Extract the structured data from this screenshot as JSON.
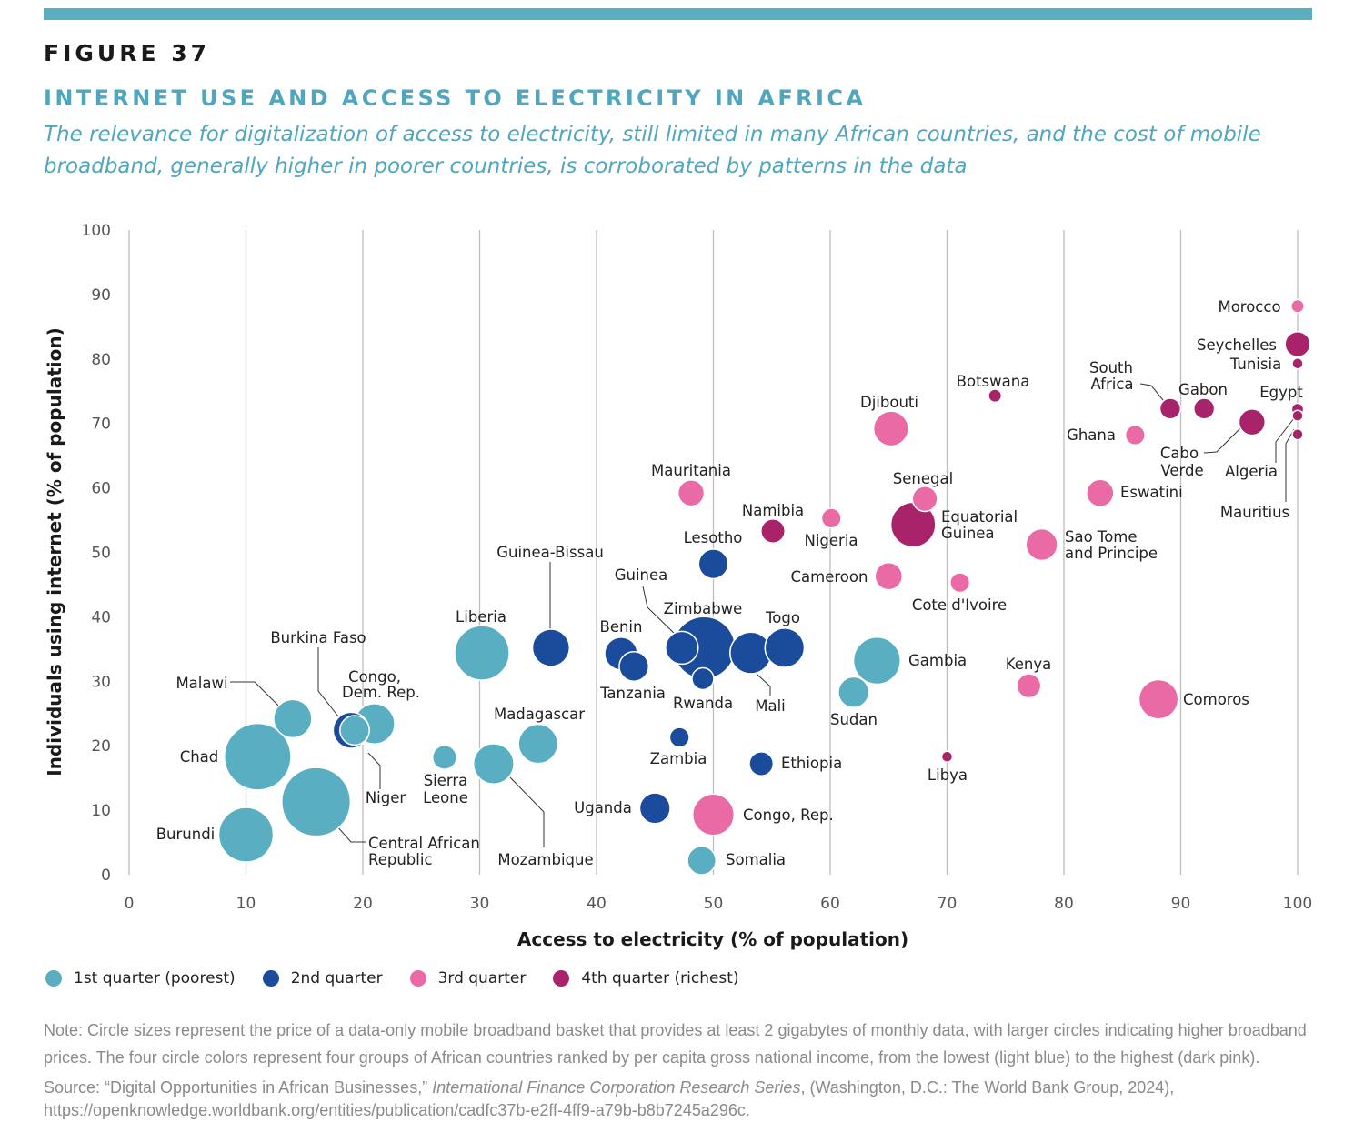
{
  "figure_label": "FIGURE 37",
  "title": "INTERNET USE AND ACCESS TO ELECTRICITY IN AFRICA",
  "subtitle": "The relevance for digitalization of access to electricity, still limited in many African countries, and the cost of mobile broadband, generally higher in poorer countries, is corroborated by patterns in the data",
  "legend": [
    {
      "label": "1st quarter (poorest)",
      "color": "#5aaec2"
    },
    {
      "label": "2nd quarter",
      "color": "#1b4b9b"
    },
    {
      "label": "3rd quarter",
      "color": "#ea6aa6"
    },
    {
      "label": "4th quarter (richest)",
      "color": "#a8236a"
    }
  ],
  "note": "Note: Circle sizes represent the price of a data-only mobile broadband basket that provides at least 2 gigabytes of monthly data, with larger circles indicating higher broadband prices. The four circle colors represent four groups of African countries ranked by per capita gross national income, from the lowest (light blue) to the highest (dark pink).",
  "source_prefix": "Source: “Digital Opportunities in African Businesses,”",
  "source_italic": "International Finance Corporation Research Series",
  "source_suffix": ", (Washington, D.C.: The World Bank Group, 2024),",
  "source_url": "https://openknowledge.worldbank.org/entities/publication/cadfc37b-e2ff-4ff9-a79b-b8b7245a296c.",
  "chart_data": {
    "type": "scatter",
    "xlabel": "Access to electricity (% of population)",
    "ylabel": "Individuals using internet (% of population)",
    "xlim": [
      0,
      100
    ],
    "ylim": [
      0,
      100
    ],
    "xticks": [
      0,
      10,
      20,
      30,
      40,
      50,
      60,
      70,
      80,
      90,
      100
    ],
    "yticks": [
      0,
      10,
      20,
      30,
      40,
      50,
      60,
      70,
      80,
      90,
      100
    ],
    "grid": "vertical",
    "size_meaning": "price of data-only mobile broadband basket (relative)",
    "colors": {
      "q1": "#5aaec2",
      "q2": "#1b4b9b",
      "q3": "#ea6aa6",
      "q4": "#a8236a"
    },
    "points": [
      {
        "name": "Malawi",
        "group": "q1",
        "x": 14,
        "y": 24.2,
        "size": 3.5
      },
      {
        "name": "Chad",
        "group": "q1",
        "x": 11,
        "y": 18.3,
        "size": 6.1
      },
      {
        "name": "Burundi",
        "group": "q1",
        "x": 10,
        "y": 6.2,
        "size": 5
      },
      {
        "name": "Central African Republic",
        "group": "q1",
        "x": 16,
        "y": 11.3,
        "size": 6.3
      },
      {
        "name": "Burkina Faso",
        "group": "q1",
        "x": 19.3,
        "y": 22.4,
        "size": 2.7
      },
      {
        "name": "Congo, Dem. Rep.",
        "group": "q1",
        "x": 21,
        "y": 23.4,
        "size": 3.7
      },
      {
        "name": "Sierra Leone",
        "group": "q1",
        "x": 27,
        "y": 18.2,
        "size": 2.2
      },
      {
        "name": "Mozambique",
        "group": "q1",
        "x": 31.2,
        "y": 17.2,
        "size": 3.7
      },
      {
        "name": "Madagascar",
        "group": "q1",
        "x": 35,
        "y": 20.3,
        "size": 3.6
      },
      {
        "name": "Liberia",
        "group": "q1",
        "x": 30.2,
        "y": 34.4,
        "size": 5
      },
      {
        "name": "Somalia",
        "group": "q1",
        "x": 49,
        "y": 2.2,
        "size": 2.6
      },
      {
        "name": "Sudan",
        "group": "q1",
        "x": 62,
        "y": 28.3,
        "size": 2.8
      },
      {
        "name": "Gambia",
        "group": "q1",
        "x": 64,
        "y": 33.2,
        "size": 4.3
      },
      {
        "name": "Niger",
        "group": "q2",
        "x": 19,
        "y": 22.4,
        "size": 3.3
      },
      {
        "name": "Guinea-Bissau",
        "group": "q2",
        "x": 36.1,
        "y": 35.2,
        "size": 3.4
      },
      {
        "name": "Benin",
        "group": "q2",
        "x": 42.1,
        "y": 34.3,
        "size": 3
      },
      {
        "name": "Tanzania",
        "group": "q2",
        "x": 43.2,
        "y": 32.3,
        "size": 2.7
      },
      {
        "name": "Guinea",
        "group": "q2",
        "x": 47.3,
        "y": 35.2,
        "size": 3
      },
      {
        "name": "Zimbabwe",
        "group": "q2",
        "x": 49.2,
        "y": 35.2,
        "size": 5.7
      },
      {
        "name": "Rwanda",
        "group": "q2",
        "x": 49.1,
        "y": 30.4,
        "size": 2
      },
      {
        "name": "Mali",
        "group": "q2",
        "x": 53.2,
        "y": 34.4,
        "size": 3.8
      },
      {
        "name": "Togo",
        "group": "q2",
        "x": 56.1,
        "y": 35.2,
        "size": 3.6
      },
      {
        "name": "Lesotho",
        "group": "q2",
        "x": 50,
        "y": 48.2,
        "size": 2.7
      },
      {
        "name": "Zambia",
        "group": "q2",
        "x": 47.1,
        "y": 21.3,
        "size": 1.8
      },
      {
        "name": "Ethiopia",
        "group": "q2",
        "x": 54.1,
        "y": 17.2,
        "size": 2.2
      },
      {
        "name": "Uganda",
        "group": "q2",
        "x": 45,
        "y": 10.3,
        "size": 2.8
      },
      {
        "name": "Mauritania",
        "group": "q3",
        "x": 48.1,
        "y": 59.2,
        "size": 2.4
      },
      {
        "name": "Congo, Rep.",
        "group": "q3",
        "x": 50,
        "y": 9.3,
        "size": 3.8
      },
      {
        "name": "Nigeria",
        "group": "q3",
        "x": 60.1,
        "y": 55.3,
        "size": 1.8
      },
      {
        "name": "Djibouti",
        "group": "q3",
        "x": 65.2,
        "y": 69.2,
        "size": 3.2
      },
      {
        "name": "Cameroon",
        "group": "q3",
        "x": 65,
        "y": 46.3,
        "size": 2.5
      },
      {
        "name": "Senegal",
        "group": "q3",
        "x": 68.1,
        "y": 58.3,
        "size": 2.3
      },
      {
        "name": "Cote d'Ivoire",
        "group": "q3",
        "x": 71.1,
        "y": 45.3,
        "size": 1.8
      },
      {
        "name": "Kenya",
        "group": "q3",
        "x": 77,
        "y": 29.3,
        "size": 2.2
      },
      {
        "name": "Sao Tome and Principe",
        "group": "q3",
        "x": 78.1,
        "y": 51.2,
        "size": 2.9
      },
      {
        "name": "Eswatini",
        "group": "q3",
        "x": 83.1,
        "y": 59.2,
        "size": 2.5
      },
      {
        "name": "Ghana",
        "group": "q3",
        "x": 86.1,
        "y": 68.2,
        "size": 1.8
      },
      {
        "name": "Comoros",
        "group": "q3",
        "x": 88.1,
        "y": 27.2,
        "size": 3.6
      },
      {
        "name": "Morocco",
        "group": "q3",
        "x": 100,
        "y": 88.2,
        "size": 1.2
      },
      {
        "name": "Namibia",
        "group": "q4",
        "x": 55.1,
        "y": 53.3,
        "size": 2.2
      },
      {
        "name": "Equatorial Guinea",
        "group": "q4",
        "x": 67.1,
        "y": 54.3,
        "size": 4.1
      },
      {
        "name": "Botswana",
        "group": "q4",
        "x": 74.1,
        "y": 74.3,
        "size": 1.2
      },
      {
        "name": "Libya",
        "group": "q4",
        "x": 70,
        "y": 18.3,
        "size": 1
      },
      {
        "name": "South Africa",
        "group": "q4",
        "x": 89.1,
        "y": 72.3,
        "size": 1.9
      },
      {
        "name": "Gabon",
        "group": "q4",
        "x": 92,
        "y": 72.3,
        "size": 1.9
      },
      {
        "name": "Cabo Verde",
        "group": "q4",
        "x": 96.1,
        "y": 70.2,
        "size": 2.4
      },
      {
        "name": "Seychelles",
        "group": "q4",
        "x": 100,
        "y": 82.3,
        "size": 2.3
      },
      {
        "name": "Tunisia",
        "group": "q4",
        "x": 100,
        "y": 79.3,
        "size": 1
      },
      {
        "name": "Egypt",
        "group": "q4",
        "x": 100,
        "y": 72.2,
        "size": 1.1
      },
      {
        "name": "Algeria",
        "group": "q4",
        "x": 100,
        "y": 71.2,
        "size": 1
      },
      {
        "name": "Mauritius",
        "group": "q4",
        "x": 100,
        "y": 68.3,
        "size": 1
      }
    ],
    "labels": [
      {
        "text": "Malawi"
      },
      {
        "text": "Chad"
      },
      {
        "text": "Burundi"
      },
      {
        "text": "Burkina Faso"
      },
      {
        "text": "Congo,"
      },
      {
        "text": "Dem. Rep."
      },
      {
        "text": "Niger"
      },
      {
        "text": "Central African"
      },
      {
        "text": "Republic"
      },
      {
        "text": "Sierra"
      },
      {
        "text": "Leone"
      },
      {
        "text": "Madagascar"
      },
      {
        "text": "Mozambique"
      },
      {
        "text": "Liberia"
      },
      {
        "text": "Guinea-Bissau"
      },
      {
        "text": "Guinea"
      },
      {
        "text": "Benin"
      },
      {
        "text": "Tanzania"
      },
      {
        "text": "Zimbabwe"
      },
      {
        "text": "Rwanda"
      },
      {
        "text": "Togo"
      },
      {
        "text": "Mali"
      },
      {
        "text": "Lesotho"
      },
      {
        "text": "Mauritania"
      },
      {
        "text": "Namibia"
      },
      {
        "text": "Nigeria"
      },
      {
        "text": "Cameroon"
      },
      {
        "text": "Zambia"
      },
      {
        "text": "Ethiopia"
      },
      {
        "text": "Uganda"
      },
      {
        "text": "Congo, Rep."
      },
      {
        "text": "Somalia"
      },
      {
        "text": "Djibouti"
      },
      {
        "text": "Botswana"
      },
      {
        "text": "Senegal"
      },
      {
        "text": "Equatorial"
      },
      {
        "text": "Guinea"
      },
      {
        "text": "Cote d'Ivoire"
      },
      {
        "text": "Sudan"
      },
      {
        "text": "Gambia"
      },
      {
        "text": "Kenya"
      },
      {
        "text": "Libya"
      },
      {
        "text": "Sao Tome"
      },
      {
        "text": "and Principe"
      },
      {
        "text": "Eswatini"
      },
      {
        "text": "Ghana"
      },
      {
        "text": "South"
      },
      {
        "text": "Africa"
      },
      {
        "text": "Gabon"
      },
      {
        "text": "Cabo"
      },
      {
        "text": "Verde"
      },
      {
        "text": "Algeria"
      },
      {
        "text": "Mauritius"
      },
      {
        "text": "Egypt"
      },
      {
        "text": "Tunisia"
      },
      {
        "text": "Seychelles"
      },
      {
        "text": "Morocco"
      },
      {
        "text": "Comoros"
      }
    ]
  }
}
